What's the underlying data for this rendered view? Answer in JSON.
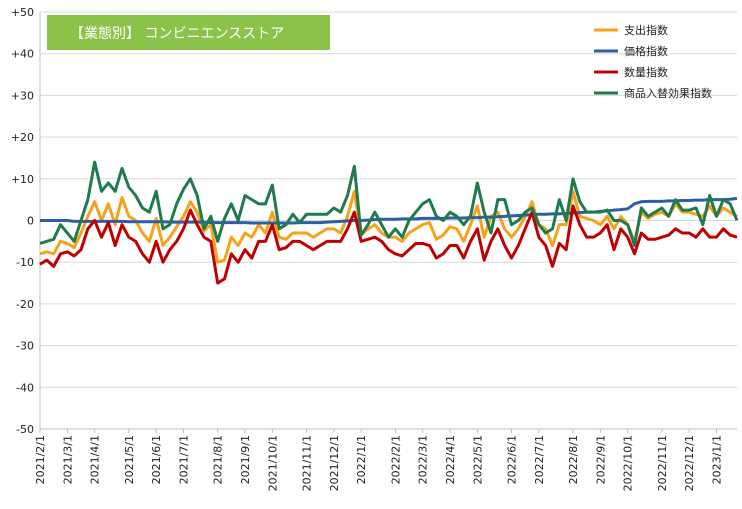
{
  "chart_data": {
    "type": "line",
    "title": "【業態別】 コンビニエンスストア",
    "title_bg_color": "#8BC34A",
    "ylim": [
      -50,
      50
    ],
    "y_ticks": [
      {
        "value": 50,
        "label": "+50"
      },
      {
        "value": 40,
        "label": "+40"
      },
      {
        "value": 30,
        "label": "+30"
      },
      {
        "value": 20,
        "label": "+20"
      },
      {
        "value": 10,
        "label": "+10"
      },
      {
        "value": 0,
        "label": "0"
      },
      {
        "value": -10,
        "label": "-10"
      },
      {
        "value": -20,
        "label": "-20"
      },
      {
        "value": -30,
        "label": "-30"
      },
      {
        "value": -40,
        "label": "-40"
      },
      {
        "value": -50,
        "label": "-50"
      }
    ],
    "x_ticks": [
      {
        "index": 0,
        "label": "2021/2/1"
      },
      {
        "index": 4,
        "label": "2021/3/1"
      },
      {
        "index": 8,
        "label": "2021/4/1"
      },
      {
        "index": 13,
        "label": "2021/5/1"
      },
      {
        "index": 17,
        "label": "2021/6/1"
      },
      {
        "index": 21,
        "label": "2021/7/1"
      },
      {
        "index": 26,
        "label": "2021/8/1"
      },
      {
        "index": 30,
        "label": "2021/9/1"
      },
      {
        "index": 34,
        "label": "2021/10/1"
      },
      {
        "index": 39,
        "label": "2021/11/1"
      },
      {
        "index": 43,
        "label": "2021/12/1"
      },
      {
        "index": 47,
        "label": "2022/1/1"
      },
      {
        "index": 52,
        "label": "2022/2/1"
      },
      {
        "index": 56,
        "label": "2022/3/1"
      },
      {
        "index": 60,
        "label": "2022/4/1"
      },
      {
        "index": 64,
        "label": "2022/5/1"
      },
      {
        "index": 69,
        "label": "2022/6/1"
      },
      {
        "index": 73,
        "label": "2022/7/1"
      },
      {
        "index": 78,
        "label": "2022/8/1"
      },
      {
        "index": 82,
        "label": "2022/9/1"
      },
      {
        "index": 86,
        "label": "2022/10/1"
      },
      {
        "index": 91,
        "label": "2022/11/1"
      },
      {
        "index": 95,
        "label": "2022/12/1"
      },
      {
        "index": 99,
        "label": "2023/1/1"
      }
    ],
    "num_points": 103,
    "grid": true,
    "legend_position": "top-right",
    "series": [
      {
        "name": "支出指数",
        "color": "#F7A21B",
        "values": [
          -8,
          -7.5,
          -8,
          -5,
          -5.5,
          -6.5,
          -3,
          1,
          4.5,
          0,
          4,
          -1,
          5.5,
          1,
          0,
          -3,
          -5,
          0.5,
          -6,
          -4,
          -1.5,
          1,
          4.5,
          2,
          -2.5,
          -1,
          -10,
          -9.5,
          -4,
          -6,
          -3,
          -4,
          -1,
          -3,
          2,
          -4,
          -4.5,
          -3,
          -3,
          -3,
          -4,
          -3,
          -2,
          -2,
          -3,
          1,
          7,
          -3.5,
          -2,
          -1,
          -3,
          -4,
          -4,
          -5,
          -3,
          -2,
          -1,
          -0.5,
          -4.5,
          -3.5,
          -1.5,
          -2,
          -5,
          -1,
          3.5,
          -4,
          1,
          2,
          -2,
          -4,
          -2,
          1,
          4.5,
          -1,
          -2,
          -6,
          -1,
          -1,
          7,
          1,
          0.5,
          0,
          -1,
          1,
          -2,
          1,
          -1,
          -5,
          2,
          0.5,
          1.5,
          2,
          1,
          4,
          2,
          2,
          1.5,
          1,
          3.5,
          1,
          3,
          2,
          1
        ]
      },
      {
        "name": "価格指数",
        "color": "#2E5EA8",
        "values": [
          0,
          0,
          0,
          0,
          0,
          -0.2,
          -0.2,
          -0.2,
          -0.2,
          -0.2,
          -0.2,
          -0.2,
          -0.2,
          -0.3,
          -0.3,
          -0.3,
          -0.3,
          -0.3,
          -0.3,
          -0.4,
          -0.4,
          -0.4,
          -0.4,
          -0.4,
          -0.4,
          -0.5,
          -0.5,
          -0.5,
          -0.5,
          -0.5,
          -0.5,
          -0.6,
          -0.6,
          -0.6,
          -0.6,
          -0.6,
          -0.6,
          -0.6,
          -0.5,
          -0.5,
          -0.5,
          -0.5,
          -0.4,
          -0.3,
          -0.2,
          -0.1,
          0,
          0,
          0.1,
          0.2,
          0.3,
          0.3,
          0.3,
          0.4,
          0.4,
          0.4,
          0.5,
          0.5,
          0.5,
          0.5,
          0.6,
          0.6,
          0.6,
          0.7,
          0.7,
          0.8,
          0.8,
          0.9,
          1,
          1.1,
          1.2,
          1.3,
          1.4,
          1.5,
          1.5,
          1.6,
          1.6,
          1.7,
          1.8,
          1.9,
          2,
          2,
          2.2,
          2.3,
          2.5,
          2.6,
          2.8,
          4,
          4.5,
          4.6,
          4.6,
          4.6,
          4.7,
          4.7,
          4.8,
          4.8,
          4.9,
          4.9,
          5,
          5,
          5,
          5.1,
          5.3
        ]
      },
      {
        "name": "数量指数",
        "color": "#C00000",
        "values": [
          -10.5,
          -9.5,
          -11,
          -8,
          -7.5,
          -8.5,
          -7,
          -2,
          0,
          -4,
          -0.5,
          -6,
          -1,
          -4,
          -5,
          -8,
          -10,
          -5,
          -10,
          -7,
          -5,
          -2,
          2.5,
          -1,
          -4,
          -5,
          -15,
          -14,
          -8,
          -10,
          -7,
          -9,
          -5,
          -5,
          -1,
          -7,
          -6.5,
          -5,
          -5,
          -6,
          -7,
          -6,
          -5,
          -5,
          -5,
          -2,
          2,
          -5,
          -4.5,
          -4,
          -5,
          -7,
          -8,
          -8.5,
          -7,
          -5.5,
          -5.5,
          -6,
          -9,
          -8,
          -6,
          -6,
          -9,
          -5,
          -2,
          -9.5,
          -5,
          -2,
          -6,
          -9,
          -6,
          -2,
          2,
          -4,
          -6,
          -11,
          -5.5,
          -7,
          3.5,
          -1,
          -4,
          -4,
          -3,
          -1,
          -7,
          -2,
          -4,
          -8,
          -3,
          -4.5,
          -4.5,
          -4,
          -3.5,
          -2,
          -3,
          -3,
          -4,
          -2,
          -4,
          -4,
          -2,
          -3.5,
          -4
        ]
      },
      {
        "name": "商品入替効果指数",
        "color": "#1F7A4D",
        "values": [
          -5.5,
          -5,
          -4.5,
          -1,
          -3,
          -5,
          0,
          5,
          14,
          7,
          9,
          7,
          12.5,
          8,
          6,
          3,
          2,
          7,
          -2,
          -1,
          4,
          7.5,
          10,
          6,
          -2,
          1,
          -5,
          0.5,
          4,
          0,
          6,
          5,
          4,
          4,
          8.5,
          -2,
          -1,
          1.5,
          -0.5,
          1.5,
          1.5,
          1.5,
          1.5,
          3,
          2,
          6,
          13,
          -3.5,
          -1,
          2,
          -1,
          -4,
          -2,
          -4,
          0,
          2,
          4,
          5,
          1,
          0,
          2,
          1,
          -1,
          1,
          9,
          2,
          -3,
          5,
          5,
          -1,
          0,
          2,
          3,
          -1,
          -3,
          -2,
          5,
          0,
          10,
          4.5,
          2,
          2,
          2,
          2.5,
          0,
          0,
          -1,
          -6,
          3,
          1,
          2,
          3,
          1,
          5,
          2.5,
          2.5,
          3,
          -1,
          6,
          1,
          5,
          4,
          0
        ]
      }
    ]
  }
}
